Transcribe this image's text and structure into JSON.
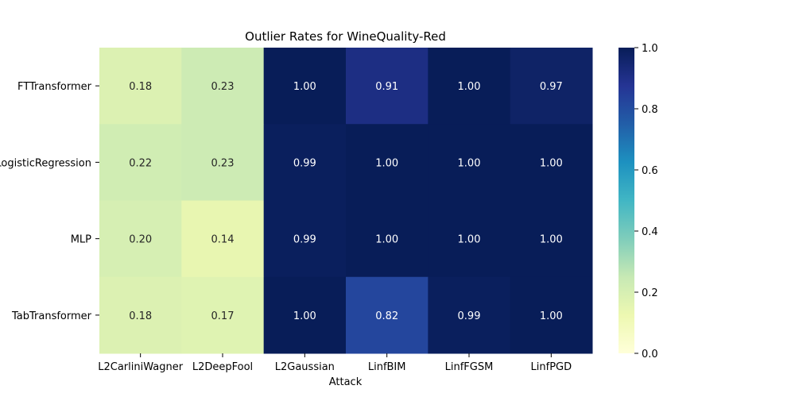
{
  "chart_data": {
    "type": "heatmap",
    "title": "Outlier Rates for WineQuality-Red",
    "xlabel": "Attack",
    "ylabel": "",
    "columns": [
      "L2CarliniWagner",
      "L2DeepFool",
      "L2Gaussian",
      "LinfBIM",
      "LinfFGSM",
      "LinfPGD"
    ],
    "rows": [
      "FTTransformer",
      "LogisticRegression",
      "MLP",
      "TabTransformer"
    ],
    "values": [
      [
        0.18,
        0.23,
        1.0,
        0.91,
        1.0,
        0.97
      ],
      [
        0.22,
        0.23,
        0.99,
        1.0,
        1.0,
        1.0
      ],
      [
        0.2,
        0.14,
        0.99,
        1.0,
        1.0,
        1.0
      ],
      [
        0.18,
        0.17,
        1.0,
        0.82,
        0.99,
        1.0
      ]
    ],
    "annotation_format": "2 decimals",
    "colormap": "YlGnBu",
    "vmin": 0.0,
    "vmax": 1.0,
    "colorbar_ticks": [
      "0.0",
      "0.2",
      "0.4",
      "0.6",
      "0.8",
      "1.0"
    ],
    "grid": false,
    "legend": "colorbar-right"
  }
}
